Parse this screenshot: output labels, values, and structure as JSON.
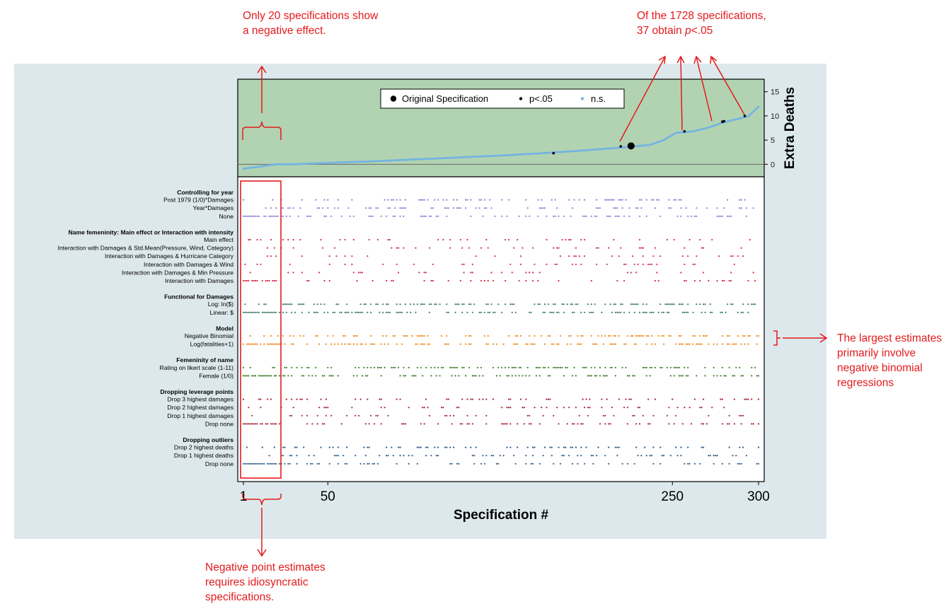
{
  "annotations": {
    "negative_effect": "Only 20 specifications show a negative effect.",
    "significance_prefix": "Of the 1728 specifications, 37 obtain ",
    "significance_p": "p",
    "significance_suffix": "<.05",
    "largest_estimates": "The largest estimates primarily involve negative binomial regressions",
    "negative_points": "Negative point estimates requires idiosyncratic specifications."
  },
  "colors": {
    "panel_background": "#dde8ec",
    "curve_panel": "#b2d3b2",
    "annotation": "#e41a1c",
    "ns_points": "#74b4e2",
    "sig_points": "#000000"
  },
  "chart_data": {
    "type": "scatter",
    "description_markers": "specification curve with indicator dot panel",
    "curve": {
      "ylabel": "Extra Deaths",
      "ylim": [
        -2,
        17
      ],
      "yticks": [
        0,
        5,
        10,
        15
      ],
      "reference_line": 0,
      "legend": {
        "placement": "top-center",
        "items": [
          {
            "label": "Original Specification",
            "marker": "large-black-dot"
          },
          {
            "label": "p<.05",
            "marker": "small-black-dot"
          },
          {
            "label": "n.s.",
            "marker": "small-blue-dot"
          }
        ]
      },
      "estimate_points": [
        [
          1,
          -0.9
        ],
        [
          10,
          -0.5
        ],
        [
          20,
          0.0
        ],
        [
          30,
          0.0
        ],
        [
          50,
          0.3
        ],
        [
          75,
          0.6
        ],
        [
          100,
          1.0
        ],
        [
          125,
          1.4
        ],
        [
          150,
          1.8
        ],
        [
          175,
          2.3
        ],
        [
          200,
          2.9
        ],
        [
          225,
          3.6
        ],
        [
          237,
          4.0
        ],
        [
          245,
          5.0
        ],
        [
          252,
          6.5
        ],
        [
          262,
          6.8
        ],
        [
          270,
          7.5
        ],
        [
          280,
          8.7
        ],
        [
          294,
          9.9
        ],
        [
          300,
          11.9
        ]
      ],
      "significant_points": [
        [
          181,
          2.3
        ],
        [
          220,
          3.7
        ],
        [
          257,
          6.8
        ],
        [
          279,
          8.8
        ],
        [
          280,
          8.9
        ],
        [
          292,
          10.0
        ]
      ],
      "original_specification": [
        226,
        3.8
      ]
    },
    "xlabel": "Specification #",
    "xticks": [
      1,
      50,
      250,
      300
    ],
    "xlim": [
      1,
      300
    ],
    "groups": [
      {
        "title": "Controlling for year",
        "color": "#8b7fd6",
        "rows": [
          "Post 1979 (1/0)*Damages",
          "Year*Damages",
          "None"
        ]
      },
      {
        "title": "Name femeninity: Main effect or Interaction with intensity",
        "color": "#d0304c",
        "rows": [
          "Main effect",
          "Interaction with Damages & Std.Mean(Pressure, Wind, Category)",
          "Interaction with Damages & Hurricane Category",
          "Interaction with Damages & Wind",
          "Interaction with Damages & Min Pressure",
          "Interaction with Damages"
        ]
      },
      {
        "title": "Functional for Damages",
        "color": "#3e7a6a",
        "rows": [
          "Log:  ln($)",
          "Linear: $"
        ]
      },
      {
        "title": "Model",
        "color": "#f08c1c",
        "rows": [
          "Negative Binomial",
          "Log(fatalities+1)"
        ]
      },
      {
        "title": "Femeninity of name",
        "color": "#3f7d2a",
        "rows": [
          "Rating on likert scale (1-11)",
          "Female (1/0)"
        ]
      },
      {
        "title": "Dropping leverage points",
        "color": "#a82838",
        "rows": [
          "Drop 3 highest damages",
          "Drop 2 highest damages",
          "Drop 1 highest damages",
          "Drop none"
        ]
      },
      {
        "title": "Dropping outliers",
        "color": "#2f5e8a",
        "rows": [
          "Drop 2 highest deaths",
          "Drop 1 highest deaths",
          "Drop none"
        ]
      }
    ]
  }
}
